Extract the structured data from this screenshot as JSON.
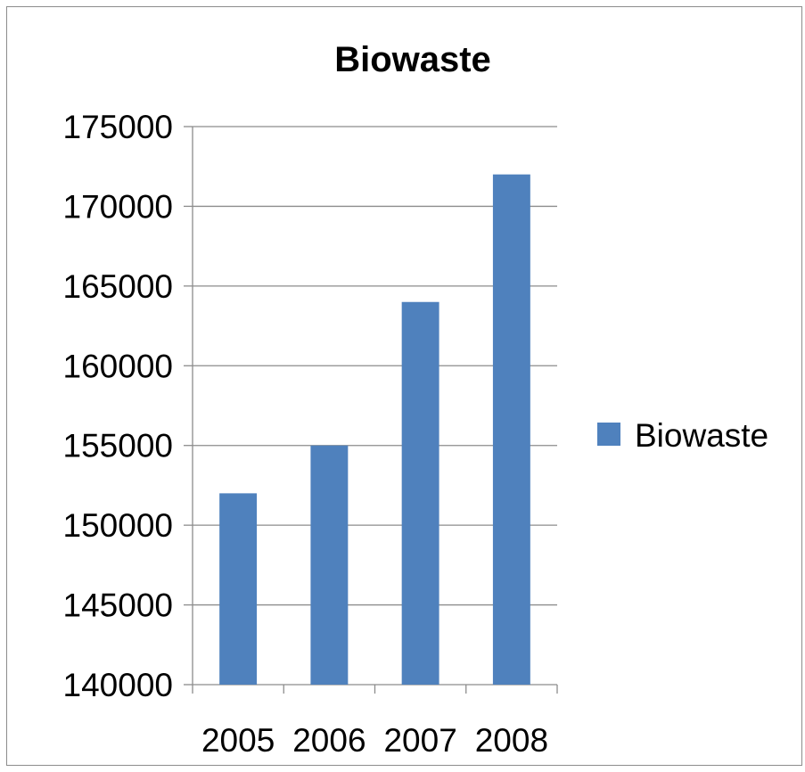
{
  "chart_data": {
    "type": "bar",
    "title": "Biowaste",
    "xlabel": "",
    "ylabel": "",
    "categories": [
      "2005",
      "2006",
      "2007",
      "2008"
    ],
    "series": [
      {
        "name": "Biowaste",
        "values": [
          152000,
          155000,
          164000,
          172000
        ],
        "color": "#4f81bd"
      }
    ],
    "ylim": [
      140000,
      175000
    ],
    "yticks": [
      "140000",
      "145000",
      "150000",
      "155000",
      "160000",
      "165000",
      "170000",
      "175000"
    ],
    "grid": true,
    "legend": "right"
  }
}
